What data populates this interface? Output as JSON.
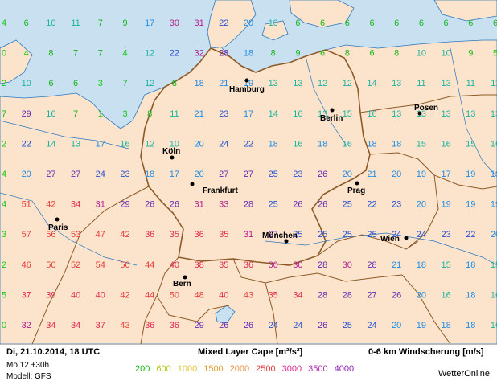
{
  "header": {
    "datetime": "Di, 21.10.2014, 18 UTC",
    "run": "Mo 12 +30h",
    "model": "Modell: GFS",
    "title_cape": "Mixed Layer Cape [m²/s²]",
    "title_shear": "0-6 km Windscherung [m/s]",
    "brand": "WetterOnline"
  },
  "legend": [
    {
      "label": "200",
      "color": "#19b419"
    },
    {
      "label": "600",
      "color": "#b4c819"
    },
    {
      "label": "1000",
      "color": "#e6c328"
    },
    {
      "label": "1500",
      "color": "#e6a03c"
    },
    {
      "label": "2000",
      "color": "#f08c3c"
    },
    {
      "label": "2500",
      "color": "#e63c3c"
    },
    {
      "label": "3000",
      "color": "#dc2a8c"
    },
    {
      "label": "3500",
      "color": "#b42ab4"
    },
    {
      "label": "4000",
      "color": "#8c1eb4"
    }
  ],
  "cities": [
    {
      "name": "Hamburg"
    },
    {
      "name": "Berlin"
    },
    {
      "name": "Posen"
    },
    {
      "name": "Köln"
    },
    {
      "name": "Frankfurt"
    },
    {
      "name": "Prag"
    },
    {
      "name": "Paris"
    },
    {
      "name": "München"
    },
    {
      "name": "Wien"
    },
    {
      "name": "Bern"
    }
  ],
  "grid_rows": [
    [
      "4",
      "6",
      "10",
      "11",
      "7",
      "9",
      "17",
      "30",
      "31",
      "22",
      "20",
      "10",
      "6",
      "6",
      "6",
      "6",
      "6",
      "6",
      "6",
      "6",
      "6"
    ],
    [
      "0",
      "4",
      "8",
      "7",
      "7",
      "4",
      "12",
      "22",
      "32",
      "28",
      "18",
      "8",
      "9",
      "6",
      "8",
      "6",
      "8",
      "10",
      "10",
      "9",
      "5"
    ],
    [
      "2",
      "10",
      "6",
      "6",
      "3",
      "7",
      "12",
      "8",
      "18",
      "21",
      "19",
      "13",
      "13",
      "12",
      "12",
      "14",
      "13",
      "11",
      "13",
      "11",
      "11"
    ],
    [
      "7",
      "29",
      "16",
      "7",
      "1",
      "3",
      "8",
      "11",
      "21",
      "23",
      "17",
      "14",
      "16",
      "13",
      "15",
      "16",
      "13",
      "13",
      "13",
      "13",
      "13"
    ],
    [
      "2",
      "22",
      "14",
      "13",
      "17",
      "16",
      "12",
      "10",
      "20",
      "24",
      "22",
      "18",
      "16",
      "18",
      "16",
      "18",
      "18",
      "15",
      "16",
      "15",
      "16"
    ],
    [
      "4",
      "20",
      "27",
      "27",
      "24",
      "23",
      "18",
      "17",
      "20",
      "27",
      "27",
      "25",
      "23",
      "26",
      "20",
      "21",
      "20",
      "19",
      "17",
      "19",
      "19"
    ],
    [
      "4",
      "51",
      "42",
      "34",
      "31",
      "29",
      "26",
      "26",
      "31",
      "33",
      "28",
      "25",
      "26",
      "26",
      "25",
      "22",
      "23",
      "20",
      "19",
      "19",
      "19"
    ],
    [
      "3",
      "57",
      "56",
      "53",
      "47",
      "42",
      "36",
      "35",
      "36",
      "35",
      "31",
      "27",
      "25",
      "25",
      "25",
      "25",
      "24",
      "24",
      "23",
      "22",
      "20"
    ],
    [
      "2",
      "46",
      "50",
      "52",
      "54",
      "50",
      "44",
      "40",
      "38",
      "35",
      "36",
      "30",
      "30",
      "28",
      "30",
      "28",
      "21",
      "18",
      "15",
      "18",
      "15"
    ],
    [
      "5",
      "37",
      "39",
      "40",
      "40",
      "42",
      "44",
      "50",
      "48",
      "40",
      "43",
      "35",
      "34",
      "28",
      "28",
      "27",
      "26",
      "20",
      "16",
      "18",
      "16"
    ],
    [
      "0",
      "32",
      "34",
      "34",
      "37",
      "43",
      "36",
      "36",
      "29",
      "26",
      "26",
      "24",
      "24",
      "26",
      "25",
      "24",
      "20",
      "19",
      "18",
      "18",
      "16"
    ]
  ]
}
